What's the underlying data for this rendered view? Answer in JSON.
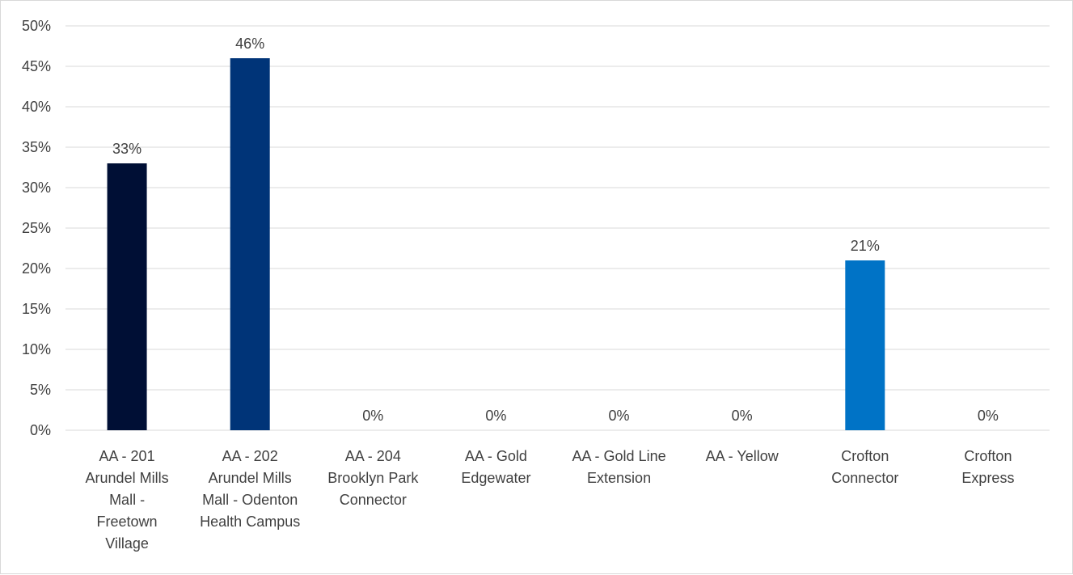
{
  "chart_data": {
    "type": "bar",
    "categories": [
      [
        "AA - 201",
        "Arundel Mills",
        "Mall -",
        "Freetown",
        "Village"
      ],
      [
        "AA - 202",
        "Arundel Mills",
        "Mall - Odenton",
        "Health Campus"
      ],
      [
        "AA - 204",
        "Brooklyn Park",
        "Connector"
      ],
      [
        "AA - Gold",
        "Edgewater"
      ],
      [
        "AA - Gold Line",
        "Extension"
      ],
      [
        "AA - Yellow"
      ],
      [
        "Crofton",
        "Connector"
      ],
      [
        "Crofton",
        "Express"
      ]
    ],
    "values": [
      33,
      46,
      0,
      0,
      0,
      0,
      21,
      0
    ],
    "value_labels": [
      "33%",
      "46%",
      "0%",
      "0%",
      "0%",
      "0%",
      "21%",
      "0%"
    ],
    "bar_colors": [
      "#000f35",
      "#003478",
      "#003478",
      "#003478",
      "#003478",
      "#003478",
      "#0073c6",
      "#0073c6"
    ],
    "ylim": [
      0,
      50
    ],
    "y_ticks": [
      "0%",
      "5%",
      "10%",
      "15%",
      "20%",
      "25%",
      "30%",
      "35%",
      "40%",
      "45%",
      "50%"
    ],
    "y_tick_values": [
      0,
      5,
      10,
      15,
      20,
      25,
      30,
      35,
      40,
      45,
      50
    ],
    "grid": true,
    "legend": "none",
    "title": "",
    "xlabel": "",
    "ylabel": ""
  }
}
